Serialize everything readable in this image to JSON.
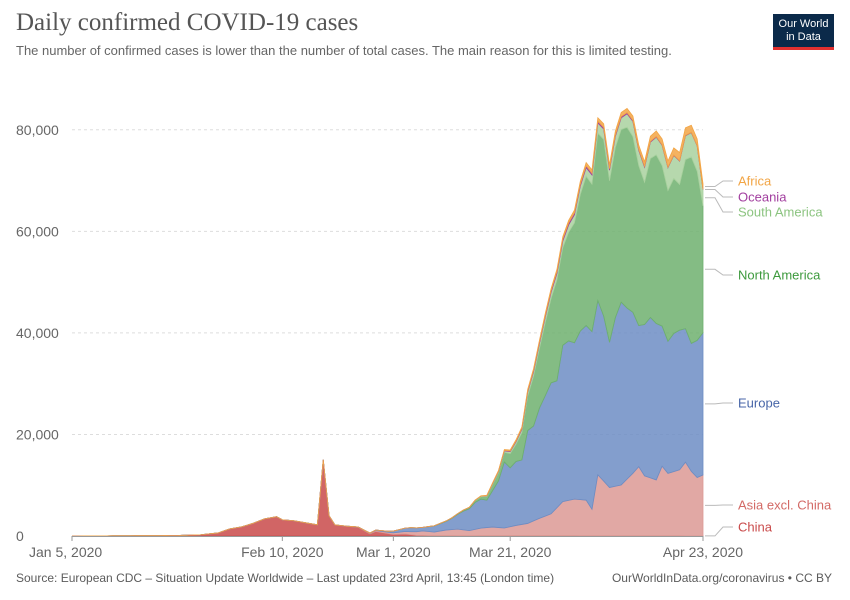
{
  "header": {
    "title": "Daily confirmed COVID-19 cases",
    "subtitle": "The number of confirmed cases is lower than the number of total cases. The main reason for this is limited testing.",
    "logo_line1": "Our World",
    "logo_line2": "in Data"
  },
  "footer": {
    "source": "Source: European CDC – Situation Update Worldwide – Last updated 23rd April, 13:45 (London time)",
    "link": "OurWorldInData.org/coronavirus • CC BY"
  },
  "chart_data": {
    "type": "area",
    "stacked": true,
    "ylim": [
      0,
      90000
    ],
    "grid": true,
    "legend_placement": "right",
    "y_ticks": [
      {
        "value": 0,
        "label": "0"
      },
      {
        "value": 20000,
        "label": "20,000"
      },
      {
        "value": 40000,
        "label": "40,000"
      },
      {
        "value": 60000,
        "label": "60,000"
      },
      {
        "value": 80000,
        "label": "80,000"
      }
    ],
    "x_ticks": [
      {
        "day": 0,
        "label": "Jan 5, 2020"
      },
      {
        "day": 36,
        "label": "Feb 10, 2020"
      },
      {
        "day": 55,
        "label": "Mar 1, 2020"
      },
      {
        "day": 75,
        "label": "Mar 21, 2020"
      },
      {
        "day": 108,
        "label": "Apr 23, 2020"
      }
    ],
    "series": [
      {
        "name": "China",
        "color": "#c94a4a",
        "points": [
          [
            0,
            0
          ],
          [
            10,
            50
          ],
          [
            18,
            100
          ],
          [
            22,
            250
          ],
          [
            25,
            600
          ],
          [
            27,
            1400
          ],
          [
            29,
            1800
          ],
          [
            31,
            2500
          ],
          [
            33,
            3400
          ],
          [
            35,
            3800
          ],
          [
            36,
            3200
          ],
          [
            38,
            3000
          ],
          [
            40,
            2600
          ],
          [
            42,
            2200
          ],
          [
            43,
            15000
          ],
          [
            44,
            4000
          ],
          [
            45,
            2200
          ],
          [
            47,
            1900
          ],
          [
            49,
            1700
          ],
          [
            51,
            400
          ],
          [
            52,
            900
          ],
          [
            53,
            700
          ],
          [
            55,
            300
          ],
          [
            57,
            400
          ],
          [
            59,
            100
          ],
          [
            62,
            80
          ],
          [
            66,
            50
          ],
          [
            72,
            60
          ],
          [
            76,
            80
          ],
          [
            80,
            70
          ],
          [
            85,
            60
          ],
          [
            90,
            50
          ],
          [
            95,
            50
          ],
          [
            100,
            40
          ],
          [
            106,
            30
          ],
          [
            108,
            20
          ]
        ]
      },
      {
        "name": "Asia excl. China",
        "color": "#dc9994",
        "points": [
          [
            0,
            0
          ],
          [
            45,
            0
          ],
          [
            50,
            100
          ],
          [
            54,
            250
          ],
          [
            56,
            400
          ],
          [
            58,
            600
          ],
          [
            60,
            900
          ],
          [
            62,
            700
          ],
          [
            64,
            1100
          ],
          [
            66,
            1300
          ],
          [
            68,
            1000
          ],
          [
            70,
            1500
          ],
          [
            72,
            1700
          ],
          [
            74,
            1500
          ],
          [
            76,
            2000
          ],
          [
            78,
            2400
          ],
          [
            80,
            3400
          ],
          [
            82,
            4300
          ],
          [
            84,
            6700
          ],
          [
            86,
            7200
          ],
          [
            88,
            7000
          ],
          [
            89,
            5200
          ],
          [
            90,
            12000
          ],
          [
            92,
            9500
          ],
          [
            94,
            10000
          ],
          [
            96,
            12300
          ],
          [
            97,
            13600
          ],
          [
            98,
            11800
          ],
          [
            100,
            11000
          ],
          [
            101,
            13700
          ],
          [
            102,
            12300
          ],
          [
            104,
            13000
          ],
          [
            105,
            14500
          ],
          [
            106,
            12700
          ],
          [
            107,
            11500
          ],
          [
            108,
            12000
          ]
        ]
      },
      {
        "name": "Europe",
        "color": "#6d8dc4",
        "points": [
          [
            0,
            0
          ],
          [
            50,
            0
          ],
          [
            54,
            200
          ],
          [
            56,
            500
          ],
          [
            58,
            800
          ],
          [
            60,
            700
          ],
          [
            62,
            1200
          ],
          [
            64,
            1700
          ],
          [
            65,
            2200
          ],
          [
            66,
            2900
          ],
          [
            67,
            3700
          ],
          [
            68,
            4300
          ],
          [
            69,
            5300
          ],
          [
            70,
            5700
          ],
          [
            71,
            5400
          ],
          [
            72,
            7200
          ],
          [
            73,
            9200
          ],
          [
            74,
            13000
          ],
          [
            75,
            11600
          ],
          [
            76,
            12600
          ],
          [
            77,
            12700
          ],
          [
            78,
            18300
          ],
          [
            79,
            18700
          ],
          [
            80,
            21700
          ],
          [
            81,
            23700
          ],
          [
            82,
            25800
          ],
          [
            83,
            25000
          ],
          [
            84,
            30800
          ],
          [
            85,
            31400
          ],
          [
            86,
            30800
          ],
          [
            87,
            33200
          ],
          [
            88,
            34400
          ],
          [
            89,
            35000
          ],
          [
            90,
            34300
          ],
          [
            91,
            32500
          ],
          [
            92,
            28600
          ],
          [
            93,
            33200
          ],
          [
            94,
            36000
          ],
          [
            95,
            33700
          ],
          [
            96,
            31700
          ],
          [
            97,
            27800
          ],
          [
            98,
            29800
          ],
          [
            99,
            31600
          ],
          [
            100,
            30800
          ],
          [
            101,
            27600
          ],
          [
            102,
            26000
          ],
          [
            103,
            27200
          ],
          [
            104,
            27500
          ],
          [
            105,
            26300
          ],
          [
            106,
            25200
          ],
          [
            107,
            27000
          ],
          [
            108,
            28000
          ]
        ]
      },
      {
        "name": "North America",
        "color": "#6eb06e",
        "points": [
          [
            0,
            0
          ],
          [
            60,
            0
          ],
          [
            64,
            80
          ],
          [
            66,
            150
          ],
          [
            68,
            280
          ],
          [
            70,
            500
          ],
          [
            71,
            700
          ],
          [
            72,
            1200
          ],
          [
            73,
            1600
          ],
          [
            74,
            1900
          ],
          [
            75,
            2800
          ],
          [
            76,
            3400
          ],
          [
            77,
            5400
          ],
          [
            78,
            6800
          ],
          [
            79,
            9800
          ],
          [
            80,
            11700
          ],
          [
            81,
            14400
          ],
          [
            82,
            16600
          ],
          [
            83,
            19900
          ],
          [
            84,
            19200
          ],
          [
            85,
            21400
          ],
          [
            86,
            23600
          ],
          [
            87,
            26900
          ],
          [
            88,
            29400
          ],
          [
            89,
            29000
          ],
          [
            90,
            33000
          ],
          [
            91,
            34800
          ],
          [
            92,
            31800
          ],
          [
            93,
            33500
          ],
          [
            94,
            34000
          ],
          [
            95,
            35600
          ],
          [
            96,
            34600
          ],
          [
            97,
            31500
          ],
          [
            98,
            28000
          ],
          [
            99,
            31300
          ],
          [
            100,
            33200
          ],
          [
            101,
            31600
          ],
          [
            102,
            29700
          ],
          [
            103,
            30500
          ],
          [
            104,
            28700
          ],
          [
            105,
            33300
          ],
          [
            106,
            36700
          ],
          [
            107,
            33300
          ],
          [
            108,
            25000
          ]
        ]
      },
      {
        "name": "South America",
        "color": "#a9d19f",
        "points": [
          [
            0,
            0
          ],
          [
            68,
            0
          ],
          [
            70,
            100
          ],
          [
            72,
            200
          ],
          [
            74,
            300
          ],
          [
            76,
            500
          ],
          [
            78,
            800
          ],
          [
            80,
            1000
          ],
          [
            82,
            1200
          ],
          [
            84,
            1300
          ],
          [
            86,
            1600
          ],
          [
            88,
            1700
          ],
          [
            90,
            2000
          ],
          [
            92,
            2100
          ],
          [
            94,
            2300
          ],
          [
            96,
            3000
          ],
          [
            98,
            3000
          ],
          [
            100,
            3500
          ],
          [
            102,
            4500
          ],
          [
            104,
            4600
          ],
          [
            106,
            4800
          ],
          [
            107,
            5000
          ],
          [
            108,
            3200
          ]
        ]
      },
      {
        "name": "Oceania",
        "color": "#a23e9f",
        "points": [
          [
            0,
            0
          ],
          [
            70,
            0
          ],
          [
            72,
            50
          ],
          [
            76,
            150
          ],
          [
            80,
            300
          ],
          [
            84,
            400
          ],
          [
            88,
            350
          ],
          [
            92,
            300
          ],
          [
            96,
            200
          ],
          [
            100,
            120
          ],
          [
            104,
            80
          ],
          [
            108,
            50
          ]
        ]
      },
      {
        "name": "Africa",
        "color": "#f2a545",
        "points": [
          [
            0,
            0
          ],
          [
            66,
            0
          ],
          [
            70,
            60
          ],
          [
            74,
            150
          ],
          [
            78,
            300
          ],
          [
            82,
            400
          ],
          [
            86,
            550
          ],
          [
            90,
            700
          ],
          [
            94,
            800
          ],
          [
            98,
            900
          ],
          [
            100,
            1100
          ],
          [
            102,
            1200
          ],
          [
            104,
            1600
          ],
          [
            106,
            1400
          ],
          [
            107,
            1300
          ],
          [
            108,
            1100
          ]
        ]
      }
    ]
  },
  "legend": [
    {
      "name": "Africa",
      "color": "#f2a545"
    },
    {
      "name": "Oceania",
      "color": "#a23e9f"
    },
    {
      "name": "South America",
      "color": "#8cc480"
    },
    {
      "name": "North America",
      "color": "#3d9a3d"
    },
    {
      "name": "Europe",
      "color": "#4866a8"
    },
    {
      "name": "Asia excl. China",
      "color": "#d36a66"
    },
    {
      "name": "China",
      "color": "#c94a4a"
    }
  ]
}
